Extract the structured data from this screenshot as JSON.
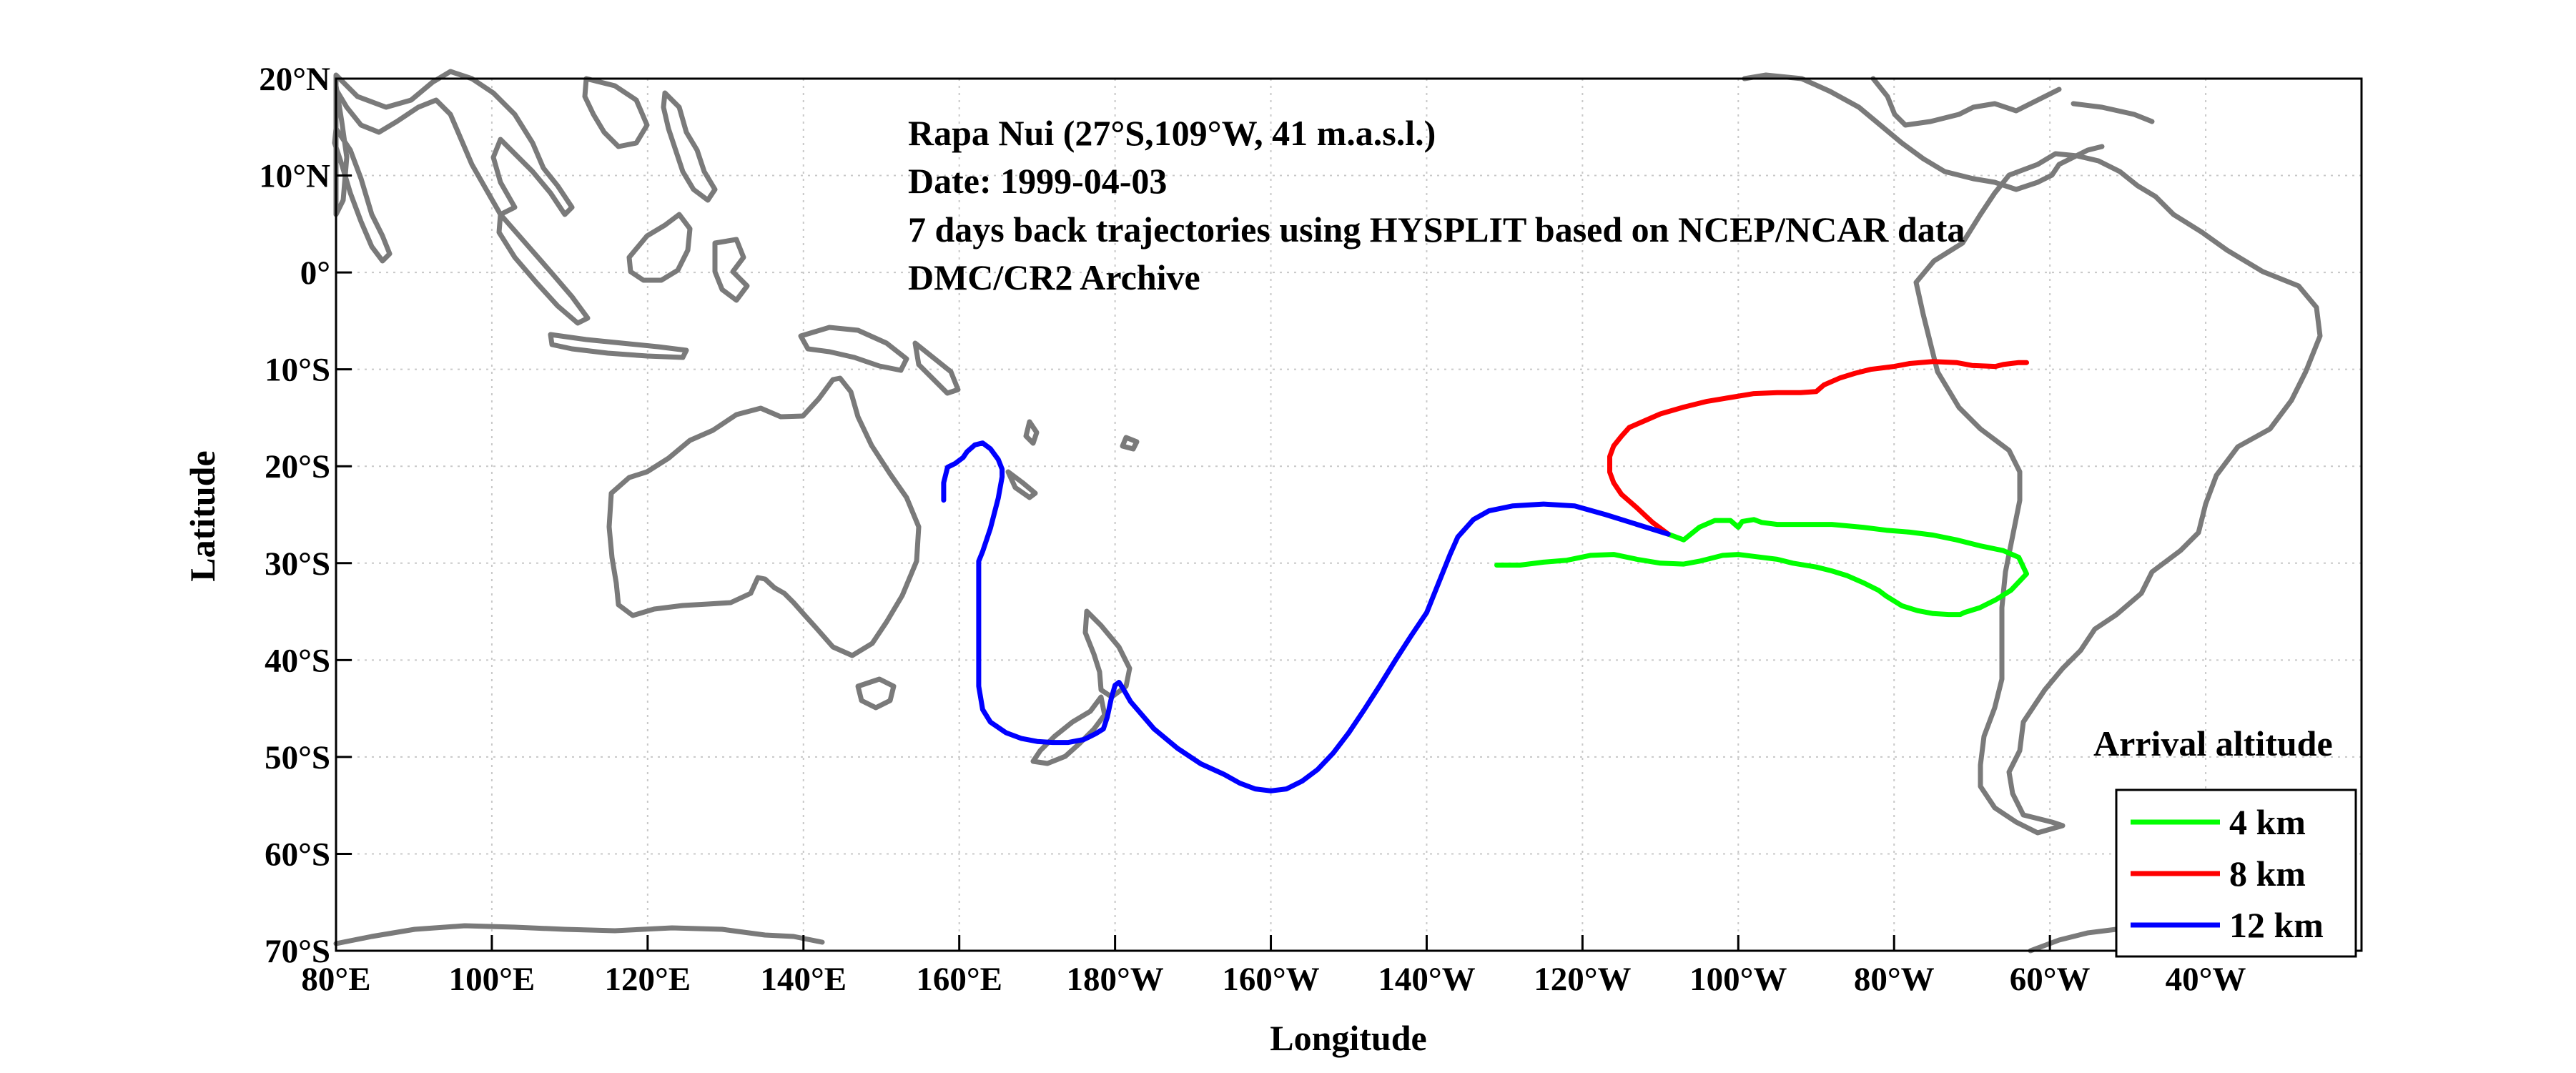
{
  "chart_data": {
    "type": "map-trajectory",
    "title_lines": [
      "Rapa Nui (27°S,109°W, 41 m.a.s.l.)",
      "Date: 1999-04-03",
      "7 days back trajectories using HYSPLIT based on NCEP/NCAR data",
      "DMC/CR2 Archive"
    ],
    "xlabel": "Longitude",
    "ylabel": "Latitude",
    "xlim": [
      80,
      340
    ],
    "ylim": [
      -70,
      20
    ],
    "grid": true,
    "x_ticks": [
      {
        "value": 80,
        "label": "80°E"
      },
      {
        "value": 100,
        "label": "100°E"
      },
      {
        "value": 120,
        "label": "120°E"
      },
      {
        "value": 140,
        "label": "140°E"
      },
      {
        "value": 160,
        "label": "160°E"
      },
      {
        "value": 180,
        "label": "180°W"
      },
      {
        "value": 200,
        "label": "160°W"
      },
      {
        "value": 220,
        "label": "140°W"
      },
      {
        "value": 240,
        "label": "120°W"
      },
      {
        "value": 260,
        "label": "100°W"
      },
      {
        "value": 280,
        "label": "80°W"
      },
      {
        "value": 300,
        "label": "60°W"
      },
      {
        "value": 320,
        "label": "40°W"
      }
    ],
    "y_ticks": [
      {
        "value": 20,
        "label": "20°N"
      },
      {
        "value": 10,
        "label": "10°N"
      },
      {
        "value": 0,
        "label": "0°"
      },
      {
        "value": -10,
        "label": "10°S"
      },
      {
        "value": -20,
        "label": "20°S"
      },
      {
        "value": -30,
        "label": "30°S"
      },
      {
        "value": -40,
        "label": "40°S"
      },
      {
        "value": -50,
        "label": "50°S"
      },
      {
        "value": -60,
        "label": "60°S"
      },
      {
        "value": -70,
        "label": "70°S"
      }
    ],
    "legend": {
      "title": "Arrival altitude",
      "placement": "bottom-right",
      "entries": [
        {
          "label": "4 km",
          "color": "#00ff00"
        },
        {
          "label": "8 km",
          "color": "#ff0000"
        },
        {
          "label": "12 km",
          "color": "#0000ff"
        }
      ]
    },
    "series": [
      {
        "name": "4 km",
        "color": "#00ff00",
        "lon": [
          251,
          253,
          255,
          257,
          259,
          260,
          260.5,
          262,
          263,
          265,
          268,
          272,
          276,
          279,
          282,
          285,
          288,
          291,
          294,
          296,
          297,
          295,
          293,
          291,
          289,
          288.5,
          288,
          287,
          285,
          283,
          281,
          280,
          279,
          278,
          276,
          274,
          272,
          270,
          267,
          265,
          262,
          260,
          258,
          257,
          255,
          253,
          250,
          247,
          244,
          241,
          238,
          235,
          232,
          229
        ],
        "lat": [
          -27,
          -27.6,
          -26.3,
          -25.6,
          -25.6,
          -26.3,
          -25.7,
          -25.5,
          -25.8,
          -26,
          -26,
          -26,
          -26.3,
          -26.6,
          -26.8,
          -27.1,
          -27.6,
          -28.2,
          -28.7,
          -29.4,
          -31.1,
          -32.8,
          -33.8,
          -34.6,
          -35.1,
          -35.3,
          -35.3,
          -35.3,
          -35.2,
          -34.9,
          -34.4,
          -33.9,
          -33.4,
          -32.8,
          -32,
          -31.3,
          -30.8,
          -30.4,
          -30,
          -29.6,
          -29.3,
          -29.1,
          -29.2,
          -29.4,
          -29.8,
          -30.1,
          -30,
          -29.6,
          -29.1,
          -29.2,
          -29.7,
          -29.9,
          -30.2,
          -30.2
        ]
      },
      {
        "name": "8 km",
        "color": "#ff0000",
        "lon": [
          251,
          249,
          247,
          245,
          244,
          243.5,
          243.5,
          243.5,
          244,
          245,
          246,
          248,
          250,
          253,
          256,
          259,
          262,
          265,
          268,
          270,
          271,
          273,
          275,
          277,
          280,
          282,
          285,
          288,
          290,
          293,
          294,
          295,
          296,
          297
        ],
        "lat": [
          -27,
          -25.8,
          -24.3,
          -22.9,
          -21.7,
          -20.6,
          -19.7,
          -19,
          -17.9,
          -16.9,
          -16,
          -15.3,
          -14.6,
          -13.9,
          -13.3,
          -12.9,
          -12.5,
          -12.4,
          -12.4,
          -12.3,
          -11.6,
          -10.9,
          -10.4,
          -10,
          -9.7,
          -9.4,
          -9.2,
          -9.3,
          -9.6,
          -9.7,
          -9.5,
          -9.4,
          -9.3,
          -9.3
        ]
      },
      {
        "name": "12 km",
        "color": "#0000ff",
        "lon": [
          251,
          247,
          243,
          239,
          235,
          231,
          228,
          226,
          224,
          223,
          222,
          221,
          220,
          218,
          216,
          214,
          212,
          210,
          208,
          206,
          204,
          202,
          200,
          198,
          196,
          194,
          191,
          188,
          185,
          182,
          181,
          180.5,
          180,
          179.5,
          179,
          178.5,
          177.5,
          176,
          174,
          172,
          170,
          168,
          166,
          164,
          163,
          162.5,
          162.5,
          162.5,
          162.5,
          162.5,
          163,
          164,
          165,
          165.5,
          165.5,
          165,
          164,
          163,
          162,
          161,
          160.5,
          159.5,
          158.5,
          158,
          158
        ],
        "lat": [
          -27,
          -26,
          -25,
          -24.1,
          -23.9,
          -24.1,
          -24.6,
          -25.5,
          -27.3,
          -29.1,
          -31.1,
          -33.1,
          -35.1,
          -37.5,
          -40,
          -42.6,
          -45.1,
          -47.5,
          -49.6,
          -51.3,
          -52.5,
          -53.3,
          -53.5,
          -53.3,
          -52.7,
          -51.8,
          -50.7,
          -49.1,
          -47.1,
          -44.3,
          -42.9,
          -42.3,
          -42.6,
          -44,
          -45.9,
          -47.1,
          -47.6,
          -48.2,
          -48.5,
          -48.5,
          -48.4,
          -48.1,
          -47.5,
          -46.4,
          -45.1,
          -42.7,
          -37.3,
          -33.8,
          -31.2,
          -29.8,
          -28.8,
          -26.4,
          -23.3,
          -21.1,
          -20.3,
          -19.3,
          -18.2,
          -17.6,
          -17.8,
          -18.5,
          -19.1,
          -19.7,
          -20.1,
          -21.7,
          -23.5
        ]
      }
    ]
  }
}
